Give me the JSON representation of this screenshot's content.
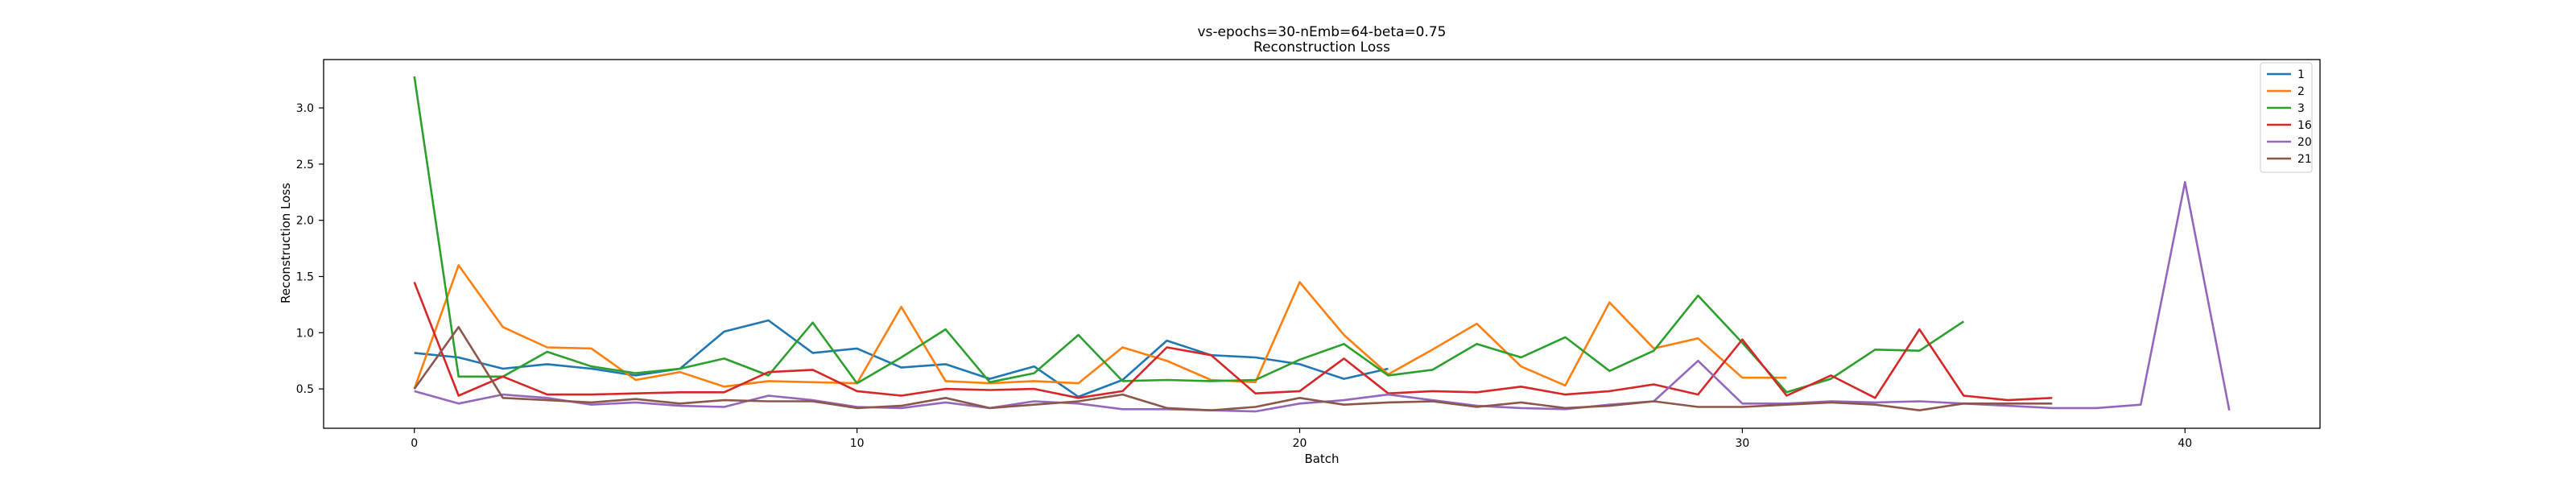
{
  "chart_data": {
    "type": "line",
    "title": "vs-epochs=30-nEmb=64-beta=0.75",
    "subtitle": "Reconstruction Loss",
    "xlabel": "Batch",
    "ylabel": "Reconstruction Loss",
    "xlim": [
      -2.05,
      43.05
    ],
    "ylim": [
      0.15,
      3.43
    ],
    "xticks": [
      0,
      10,
      20,
      30,
      40
    ],
    "yticks": [
      0.5,
      1.0,
      1.5,
      2.0,
      2.5,
      3.0
    ],
    "ytick_labels": [
      "0.5",
      "1.0",
      "1.5",
      "2.0",
      "2.5",
      "3.0"
    ],
    "grid": false,
    "legend_position": "top-right",
    "series": [
      {
        "name": "1",
        "color": "#1f77b4",
        "x": [
          0,
          1,
          2,
          3,
          4,
          5,
          6,
          7,
          8,
          9,
          10,
          11,
          12,
          13,
          14,
          15,
          16,
          17,
          18,
          19,
          20,
          21,
          22
        ],
        "values": [
          0.82,
          0.78,
          0.68,
          0.72,
          0.68,
          0.62,
          0.68,
          1.01,
          1.11,
          0.82,
          0.86,
          0.69,
          0.72,
          0.59,
          0.7,
          0.43,
          0.58,
          0.93,
          0.8,
          0.78,
          0.72,
          0.59,
          0.68
        ]
      },
      {
        "name": "2",
        "color": "#ff7f0e",
        "x": [
          0,
          1,
          2,
          3,
          4,
          5,
          6,
          7,
          8,
          9,
          10,
          11,
          12,
          13,
          14,
          15,
          16,
          17,
          18,
          19,
          20,
          21,
          22,
          23,
          24,
          25,
          26,
          27,
          28,
          29,
          30,
          31
        ],
        "values": [
          0.5,
          1.6,
          1.05,
          0.87,
          0.86,
          0.58,
          0.65,
          0.52,
          0.57,
          0.56,
          0.55,
          1.23,
          0.57,
          0.55,
          0.57,
          0.55,
          0.87,
          0.75,
          0.58,
          0.56,
          1.45,
          0.98,
          0.63,
          0.85,
          1.08,
          0.7,
          0.53,
          1.27,
          0.86,
          0.95,
          0.6,
          0.6
        ]
      },
      {
        "name": "3",
        "color": "#2ca02c",
        "x": [
          0,
          1,
          2,
          3,
          4,
          5,
          6,
          7,
          8,
          9,
          10,
          11,
          12,
          13,
          14,
          15,
          16,
          17,
          18,
          19,
          20,
          21,
          22,
          23,
          24,
          25,
          26,
          27,
          28,
          29,
          30,
          31,
          32,
          33,
          34,
          35
        ],
        "values": [
          3.28,
          0.61,
          0.61,
          0.83,
          0.7,
          0.64,
          0.68,
          0.77,
          0.62,
          1.09,
          0.55,
          0.78,
          1.03,
          0.56,
          0.64,
          0.98,
          0.57,
          0.58,
          0.57,
          0.58,
          0.76,
          0.9,
          0.62,
          0.67,
          0.9,
          0.78,
          0.96,
          0.66,
          0.84,
          1.33,
          0.91,
          0.47,
          0.59,
          0.85,
          0.84,
          1.1
        ]
      },
      {
        "name": "16",
        "color": "#d62728",
        "x": [
          0,
          1,
          2,
          3,
          4,
          5,
          6,
          7,
          8,
          9,
          10,
          11,
          12,
          13,
          14,
          15,
          16,
          17,
          18,
          19,
          20,
          21,
          22,
          23,
          24,
          25,
          26,
          27,
          28,
          29,
          30,
          31,
          32,
          33,
          34,
          35,
          36,
          37
        ],
        "values": [
          1.45,
          0.44,
          0.61,
          0.45,
          0.45,
          0.46,
          0.47,
          0.47,
          0.65,
          0.67,
          0.48,
          0.44,
          0.5,
          0.49,
          0.5,
          0.42,
          0.48,
          0.87,
          0.8,
          0.46,
          0.48,
          0.77,
          0.46,
          0.48,
          0.47,
          0.52,
          0.45,
          0.48,
          0.54,
          0.45,
          0.94,
          0.44,
          0.62,
          0.42,
          1.03,
          0.44,
          0.4,
          0.42
        ]
      },
      {
        "name": "20",
        "color": "#9467bd",
        "x": [
          0,
          1,
          2,
          3,
          4,
          5,
          6,
          7,
          8,
          9,
          10,
          11,
          12,
          13,
          14,
          15,
          16,
          17,
          18,
          19,
          20,
          21,
          22,
          23,
          24,
          25,
          26,
          27,
          28,
          29,
          30,
          31,
          32,
          33,
          34,
          35,
          36,
          37,
          38,
          39,
          40,
          41
        ],
        "values": [
          0.48,
          0.37,
          0.45,
          0.42,
          0.36,
          0.38,
          0.35,
          0.34,
          0.44,
          0.4,
          0.34,
          0.33,
          0.38,
          0.33,
          0.39,
          0.37,
          0.32,
          0.32,
          0.31,
          0.3,
          0.37,
          0.4,
          0.45,
          0.4,
          0.35,
          0.33,
          0.32,
          0.36,
          0.39,
          0.75,
          0.37,
          0.37,
          0.39,
          0.38,
          0.39,
          0.37,
          0.35,
          0.33,
          0.33,
          0.36,
          2.34,
          0.31
        ]
      },
      {
        "name": "21",
        "color": "#8c564b",
        "x": [
          0,
          1,
          2,
          3,
          4,
          5,
          6,
          7,
          8,
          9,
          10,
          11,
          12,
          13,
          14,
          15,
          16,
          17,
          18,
          19,
          20,
          21,
          22,
          23,
          24,
          25,
          26,
          27,
          28,
          29,
          30,
          31,
          32,
          33,
          34,
          35,
          36,
          37
        ],
        "values": [
          0.5,
          1.05,
          0.42,
          0.4,
          0.38,
          0.41,
          0.37,
          0.4,
          0.39,
          0.39,
          0.33,
          0.35,
          0.42,
          0.33,
          0.36,
          0.39,
          0.45,
          0.33,
          0.31,
          0.34,
          0.42,
          0.36,
          0.38,
          0.39,
          0.34,
          0.38,
          0.33,
          0.35,
          0.39,
          0.34,
          0.34,
          0.36,
          0.38,
          0.36,
          0.31,
          0.37,
          0.37,
          0.37
        ]
      }
    ]
  }
}
